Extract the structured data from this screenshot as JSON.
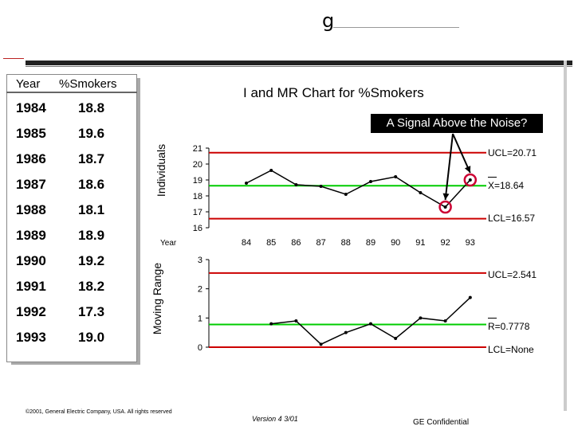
{
  "logo": {
    "glyph": "g"
  },
  "table": {
    "header_year": "Year",
    "header_value": "%Smokers",
    "rows": [
      {
        "year": "1984",
        "value": "18.8"
      },
      {
        "year": "1985",
        "value": "19.6"
      },
      {
        "year": "1986",
        "value": "18.7"
      },
      {
        "year": "1987",
        "value": "18.6"
      },
      {
        "year": "1988",
        "value": "18.1"
      },
      {
        "year": "1989",
        "value": "18.9"
      },
      {
        "year": "1990",
        "value": "19.2"
      },
      {
        "year": "1991",
        "value": "18.2"
      },
      {
        "year": "1992",
        "value": "17.3"
      },
      {
        "year": "1993",
        "value": "19.0"
      }
    ]
  },
  "chart_title": "I and MR Chart for %Smokers",
  "signal_box": "A Signal Above the Noise?",
  "footer": {
    "copyright": "©2001, General Electric Company, USA. All rights reserved",
    "version": "Version 4  3/01",
    "confidential": "GE Confidential"
  },
  "colors": {
    "limit": "#cc0000",
    "center": "#00cc00",
    "data": "#000000",
    "highlight": "#cc0033"
  },
  "chart_data": [
    {
      "type": "line",
      "ylabel": "Individuals",
      "xlabel": "Year",
      "x": [
        "84",
        "85",
        "86",
        "87",
        "88",
        "89",
        "90",
        "91",
        "92",
        "93"
      ],
      "values": [
        18.8,
        19.6,
        18.7,
        18.6,
        18.1,
        18.9,
        19.2,
        18.2,
        17.3,
        19.0
      ],
      "ylim": [
        16,
        21
      ],
      "yticks": [
        "16",
        "17",
        "18",
        "19",
        "20",
        "21"
      ],
      "ucl": 20.71,
      "center": 18.64,
      "lcl": 16.57,
      "ucl_label": "UCL=20.71",
      "center_label": "X=18.64",
      "lcl_label": "LCL=16.57",
      "highlighted_x": [
        "92",
        "93"
      ]
    },
    {
      "type": "line",
      "ylabel": "Moving Range",
      "x": [
        "84",
        "85",
        "86",
        "87",
        "88",
        "89",
        "90",
        "91",
        "92",
        "93"
      ],
      "values": [
        null,
        0.8,
        0.9,
        0.1,
        0.5,
        0.8,
        0.3,
        1.0,
        0.9,
        1.7
      ],
      "ylim": [
        0,
        3
      ],
      "yticks": [
        "0",
        "1",
        "2",
        "3"
      ],
      "ucl": 2.541,
      "center": 0.7778,
      "lcl": 0,
      "ucl_label": "UCL=2.541",
      "center_label": "R=0.7778",
      "lcl_label": "LCL=None"
    }
  ]
}
